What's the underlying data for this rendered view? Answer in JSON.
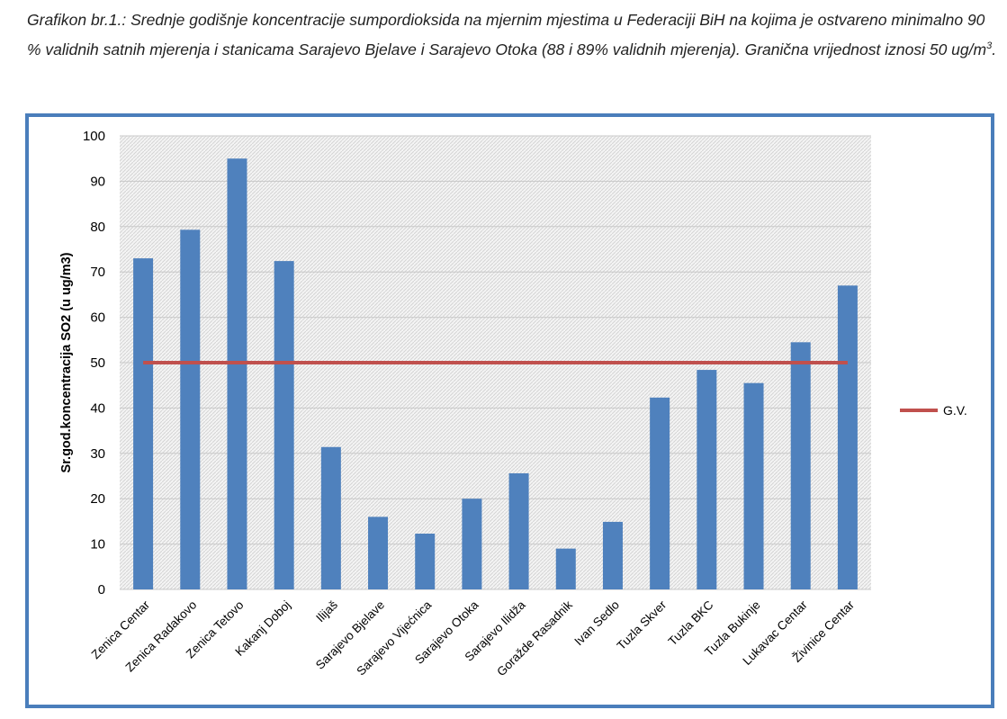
{
  "chart_data": {
    "type": "bar",
    "title": "Grafikon br.1.: Srednje godišnje koncentracije sumpordioksida na mjernim mjestima u Federaciji BiH na kojima je ostvareno minimalno 90 % validnih satnih mjerenja i stanicama Sarajevo Bjelave  i Sarajevo Otoka  (88 i 89% validnih mjerenja). Granična vrijednost iznosi 50 ug/m",
    "title_sup": "3",
    "title_end": ".",
    "y_label": "Sr.god.koncentracija SO2 (u ug/m3)",
    "categories": [
      "Zenica Centar",
      "Zenica Radakovo",
      "Zenica Tetovo",
      "Kakanj Doboj",
      "Ilijaš",
      "Sarajevo Bjelave",
      "Sarajevo Vijećnica",
      "Sarajevo Otoka",
      "Sarajevo Ilidža",
      "Goražde Rasadnik",
      "Ivan Sedlo",
      "Tuzla Skver",
      "Tuzla BKC",
      "Tuzla Bukinje",
      "Lukavac Centar",
      "Živinice Centar"
    ],
    "series": [
      {
        "type": "bar",
        "color": "#4f81bd",
        "values": [
          73,
          79.3,
          95,
          72.4,
          31.4,
          16,
          12.3,
          20,
          25.6,
          9,
          14.9,
          42.3,
          48.4,
          45.5,
          54.5,
          67
        ]
      },
      {
        "type": "line",
        "name": "G.V.",
        "color": "#c0504d",
        "values": [
          50,
          50,
          50,
          50,
          50,
          50,
          50,
          50,
          50,
          50,
          50,
          50,
          50,
          50,
          50,
          50
        ]
      }
    ],
    "ylim": [
      0,
      100
    ],
    "yticks": [
      0,
      10,
      20,
      30,
      40,
      50,
      60,
      70,
      80,
      90,
      100
    ],
    "grid": true,
    "legend": "right"
  }
}
